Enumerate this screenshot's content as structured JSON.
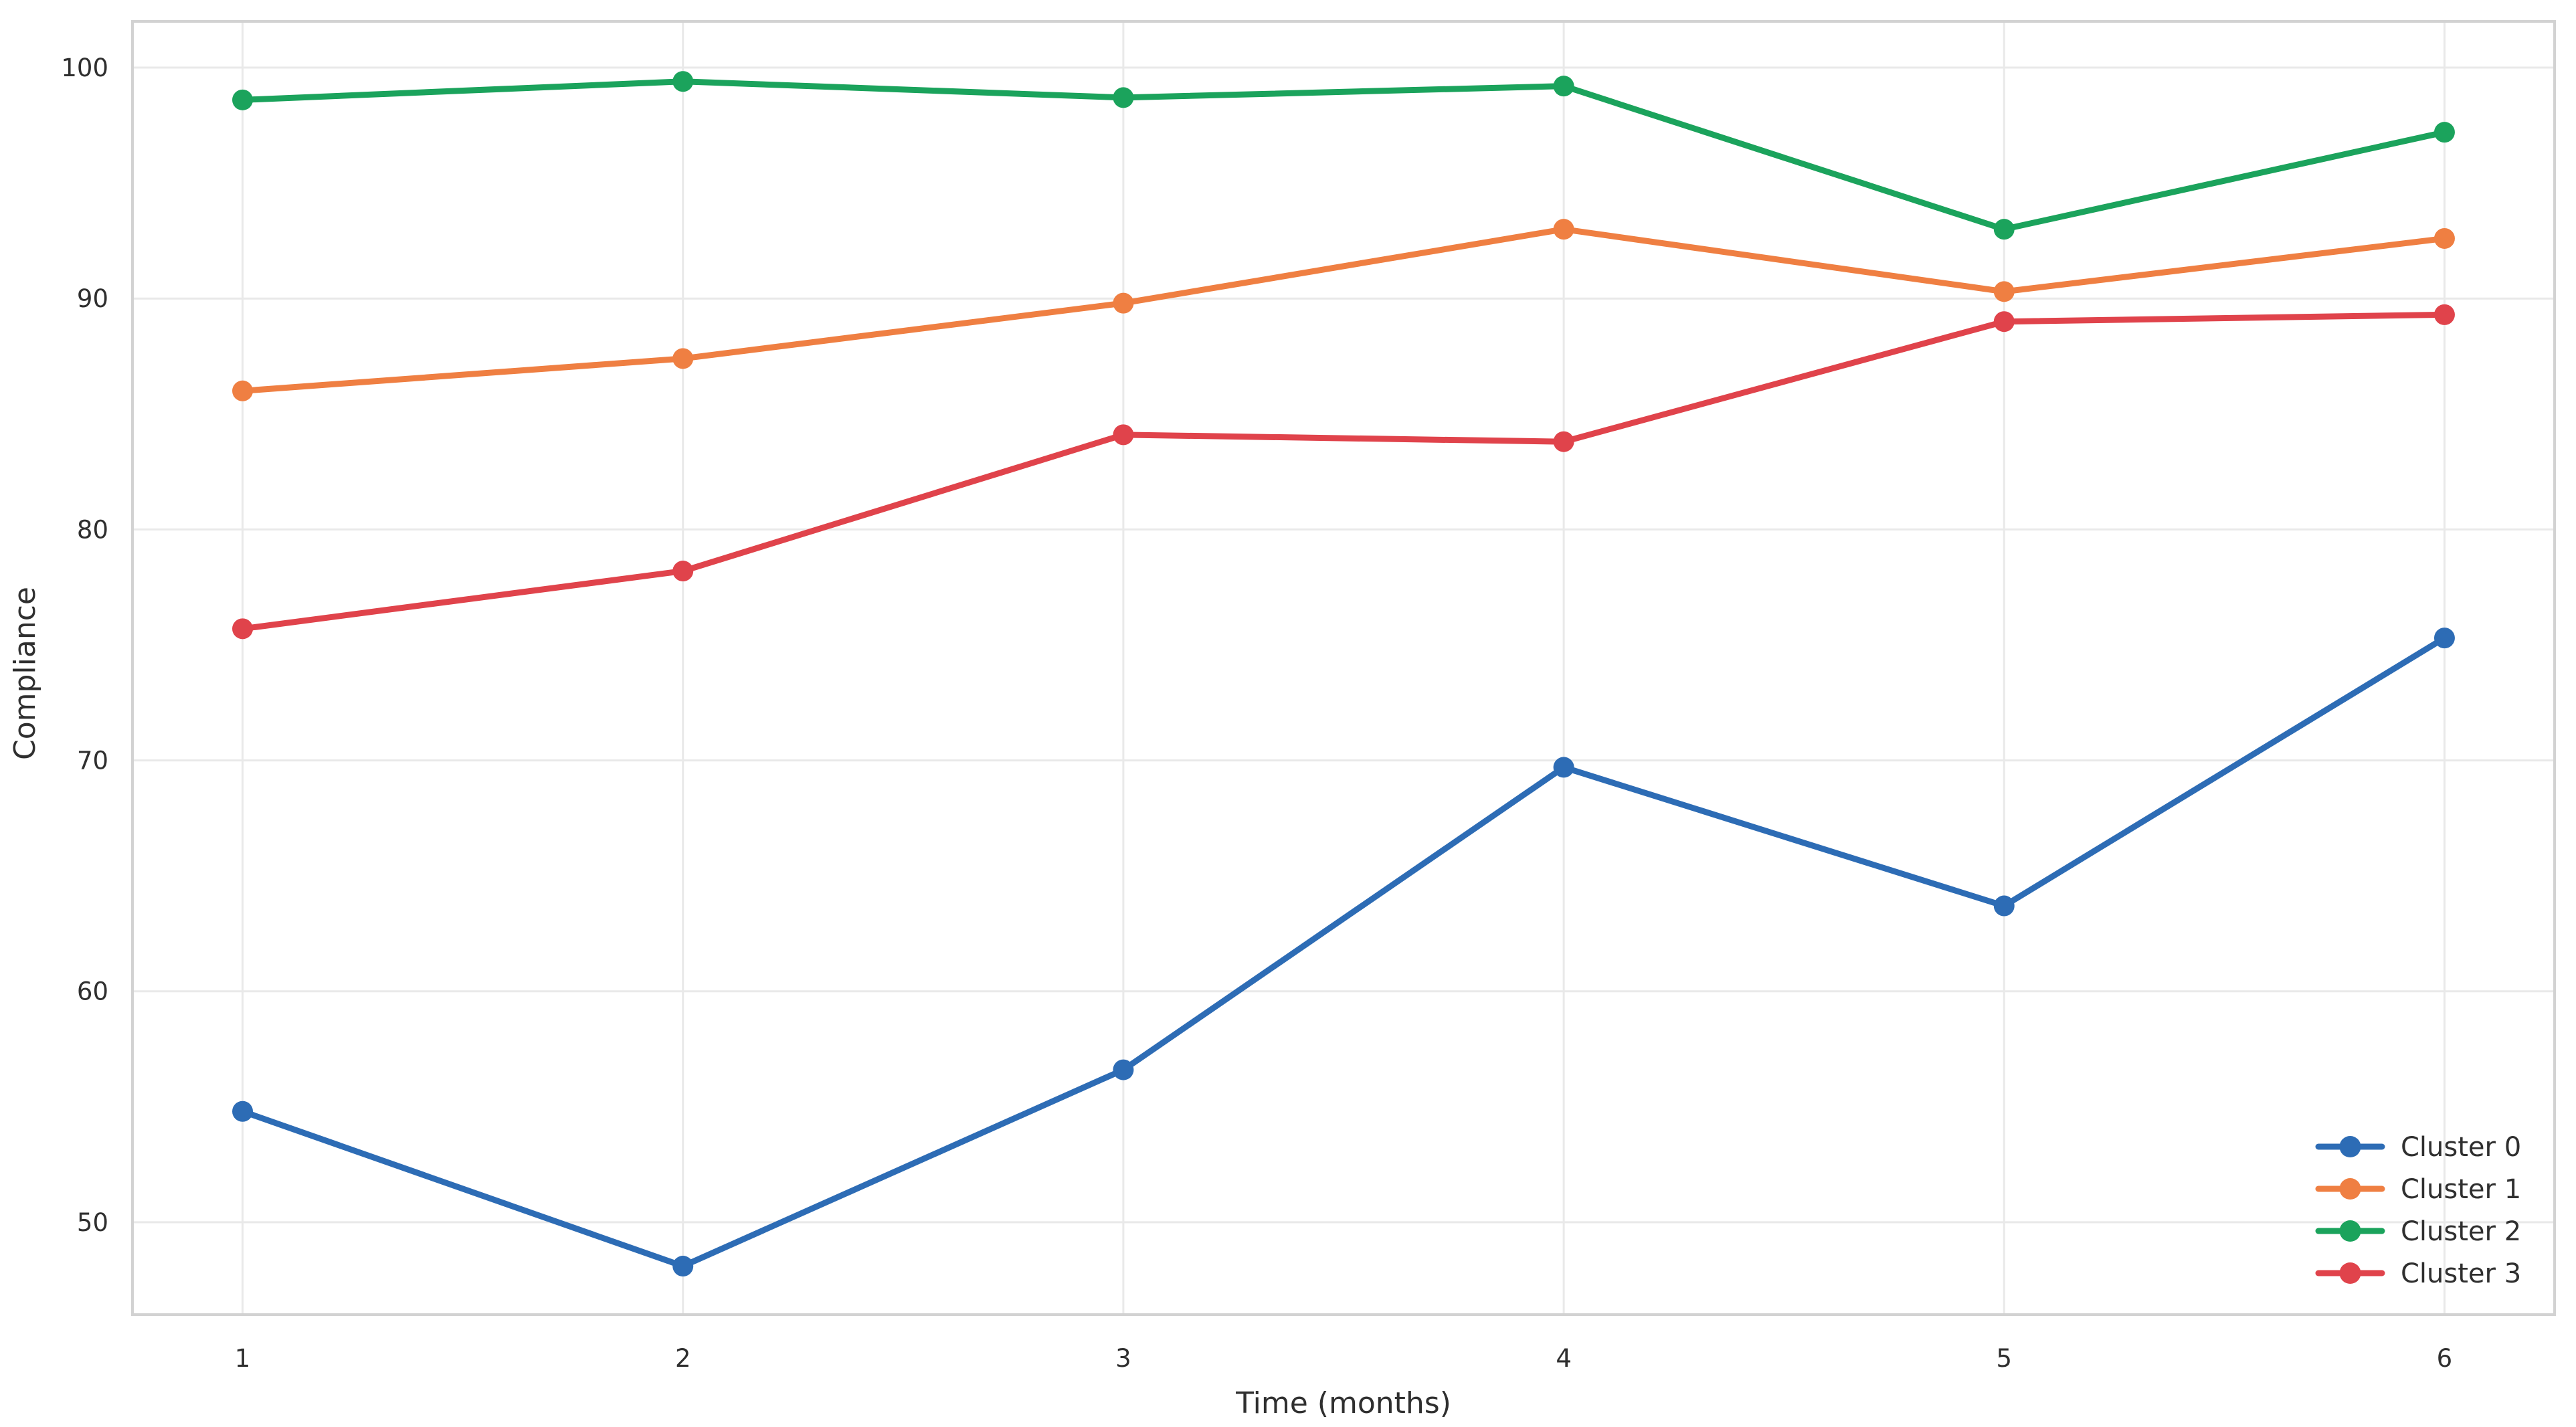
{
  "figure": {
    "background_color": "#ffffff",
    "plot_background_color": "#ffffff",
    "grid_color": "#e9e9e9",
    "spine_color": "#d2d2d2",
    "text_color": "#2f2f2f"
  },
  "chart_data": {
    "type": "line",
    "title": "",
    "xlabel": "Time (months)",
    "ylabel": "Compliance",
    "x": [
      1,
      2,
      3,
      4,
      5,
      6
    ],
    "x_tick_labels": [
      "1",
      "2",
      "3",
      "4",
      "5",
      "6"
    ],
    "y_tick_values": [
      50,
      60,
      70,
      80,
      90,
      100
    ],
    "y_tick_labels": [
      "50",
      "60",
      "70",
      "80",
      "90",
      "100"
    ],
    "xlim": [
      0.75,
      6.25
    ],
    "ylim": [
      46,
      102
    ],
    "grid": true,
    "legend_position": "lower right",
    "marker": "circle",
    "series": [
      {
        "name": "Cluster 0",
        "color": "#2d6cb5",
        "values": [
          54.8,
          48.1,
          56.6,
          69.7,
          63.7,
          75.3
        ]
      },
      {
        "name": "Cluster 1",
        "color": "#ef7f42",
        "values": [
          86.0,
          87.4,
          89.8,
          93.0,
          90.3,
          92.6
        ]
      },
      {
        "name": "Cluster 2",
        "color": "#1ba35c",
        "values": [
          98.6,
          99.4,
          98.7,
          99.2,
          93.0,
          97.2
        ]
      },
      {
        "name": "Cluster 3",
        "color": "#e0434b",
        "values": [
          75.7,
          78.2,
          84.1,
          83.8,
          89.0,
          89.3
        ]
      }
    ],
    "legend": [
      "Cluster 0",
      "Cluster 1",
      "Cluster 2",
      "Cluster 3"
    ]
  }
}
